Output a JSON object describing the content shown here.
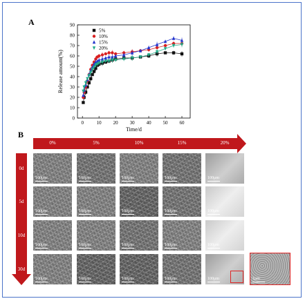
{
  "panels": {
    "a": "A",
    "b": "B"
  },
  "chart_data": {
    "type": "scatter",
    "xlabel": "Time/d",
    "ylabel": "Release amount(%)",
    "xlim": [
      -3,
      65
    ],
    "ylim": [
      0,
      90
    ],
    "xticks": [
      "0",
      "10",
      "20",
      "30",
      "40",
      "50",
      "60"
    ],
    "yticks": [
      "0",
      "10",
      "20",
      "30",
      "40",
      "50",
      "60",
      "70",
      "80",
      "90"
    ],
    "legend_position": "top-left",
    "series": [
      {
        "name": "5%",
        "color": "#111111",
        "marker": "square",
        "x": [
          0.5,
          1,
          2,
          3,
          4,
          5,
          6,
          7,
          8,
          9,
          10,
          12,
          14,
          16,
          18,
          20,
          25,
          30,
          35,
          40,
          45,
          50,
          55,
          60
        ],
        "y": [
          15,
          20,
          25,
          30,
          34,
          38,
          42,
          45,
          48,
          51,
          52,
          53,
          54,
          55,
          56,
          57,
          58,
          58,
          59,
          60,
          62,
          63,
          63,
          62
        ]
      },
      {
        "name": "10%",
        "color": "#d92020",
        "marker": "circle",
        "x": [
          0.5,
          1,
          2,
          3,
          4,
          5,
          6,
          7,
          8,
          9,
          10,
          12,
          14,
          16,
          18,
          20,
          25,
          30,
          35,
          40,
          45,
          50,
          55,
          60
        ],
        "y": [
          20,
          25,
          30,
          36,
          42,
          47,
          51,
          54,
          57,
          59,
          60,
          61,
          62,
          63,
          63,
          62,
          63,
          64,
          65,
          66,
          68,
          70,
          72,
          72
        ]
      },
      {
        "name": "15%",
        "color": "#2233cc",
        "marker": "triangle-up",
        "x": [
          0.5,
          1,
          2,
          3,
          4,
          5,
          6,
          7,
          8,
          9,
          10,
          12,
          14,
          16,
          18,
          20,
          25,
          30,
          35,
          40,
          45,
          50,
          55,
          60
        ],
        "y": [
          22,
          27,
          32,
          37,
          42,
          46,
          49,
          52,
          54,
          55,
          56,
          57,
          58,
          59,
          59,
          60,
          61,
          63,
          65,
          68,
          71,
          74,
          77,
          75
        ]
      },
      {
        "name": "20%",
        "color": "#22aa88",
        "marker": "triangle-down",
        "x": [
          0.5,
          1,
          2,
          3,
          4,
          5,
          6,
          7,
          8,
          9,
          10,
          12,
          14,
          16,
          18,
          20,
          25,
          30,
          35,
          40,
          45,
          50,
          55,
          60
        ],
        "y": [
          26,
          30,
          34,
          38,
          41,
          44,
          47,
          49,
          51,
          52,
          53,
          54,
          55,
          55,
          56,
          56,
          57,
          58,
          59,
          61,
          64,
          67,
          70,
          71
        ]
      }
    ]
  },
  "grid": {
    "columns": [
      "0%",
      "5%",
      "10%",
      "15%",
      "20%"
    ],
    "rows": [
      "0d",
      "5d",
      "10d",
      "30d"
    ],
    "scale_bar": "100μm",
    "inset_scale_bar": "1μm",
    "arrow_color": "#c0181c"
  }
}
